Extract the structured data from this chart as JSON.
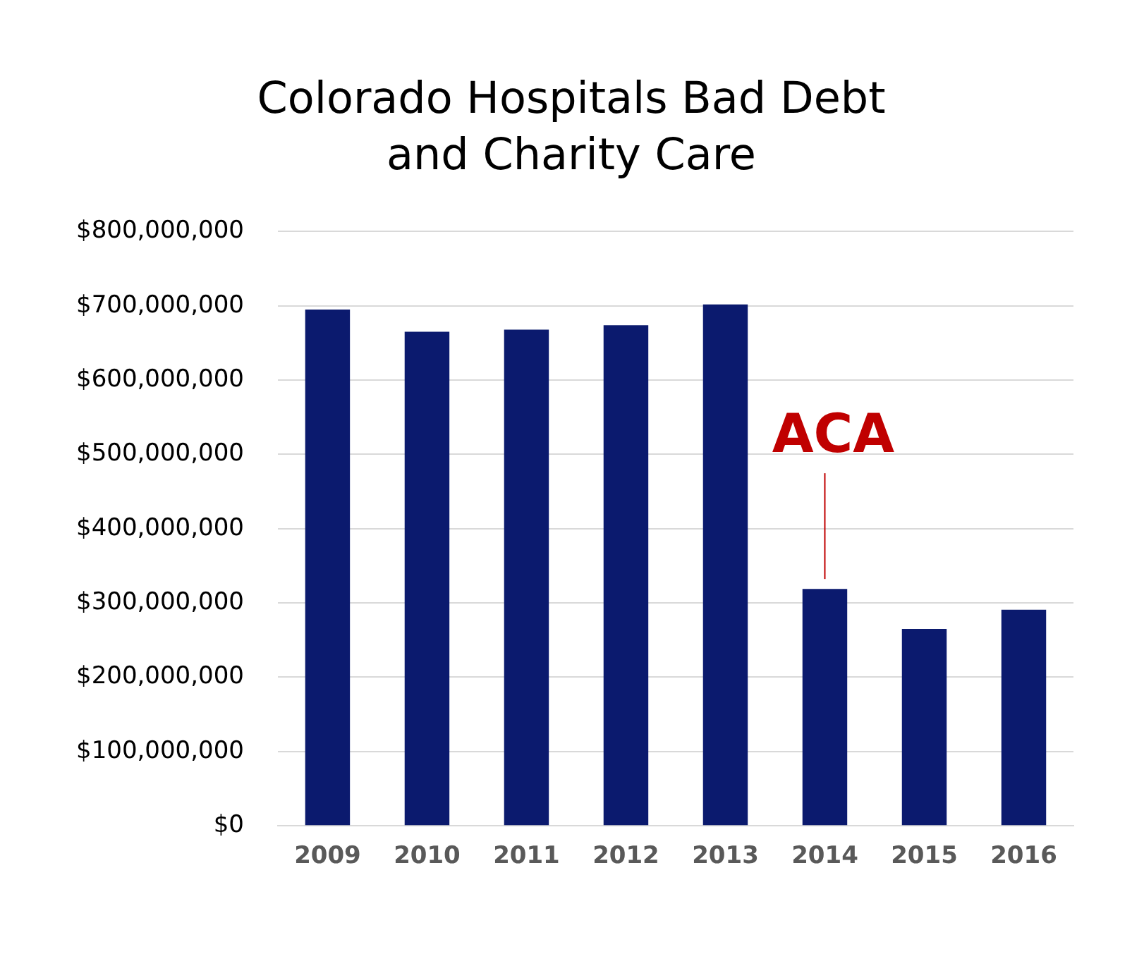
{
  "chart_data": {
    "type": "bar",
    "title": "Colorado Hospitals Bad Debt and Charity Care",
    "categories": [
      "2009",
      "2010",
      "2011",
      "2012",
      "2013",
      "2014",
      "2015",
      "2016"
    ],
    "values": [
      695000000,
      665000000,
      668000000,
      674000000,
      702000000,
      319000000,
      265000000,
      291000000
    ],
    "color": "#0b1a6e",
    "ylim": [
      0,
      800000000
    ],
    "yticks": [
      {
        "value": 0,
        "label": "$0"
      },
      {
        "value": 100000000,
        "label": "$100,000,000"
      },
      {
        "value": 200000000,
        "label": "$200,000,000"
      },
      {
        "value": 300000000,
        "label": "$300,000,000"
      },
      {
        "value": 400000000,
        "label": "$400,000,000"
      },
      {
        "value": 500000000,
        "label": "$500,000,000"
      },
      {
        "value": 600000000,
        "label": "$600,000,000"
      },
      {
        "value": 700000000,
        "label": "$700,000,000"
      },
      {
        "value": 800000000,
        "label": "$800,000,000"
      }
    ],
    "grid": "y",
    "legend": false,
    "annotations": [
      {
        "text": "ACA",
        "x": "2014",
        "y": 319000000
      }
    ]
  }
}
